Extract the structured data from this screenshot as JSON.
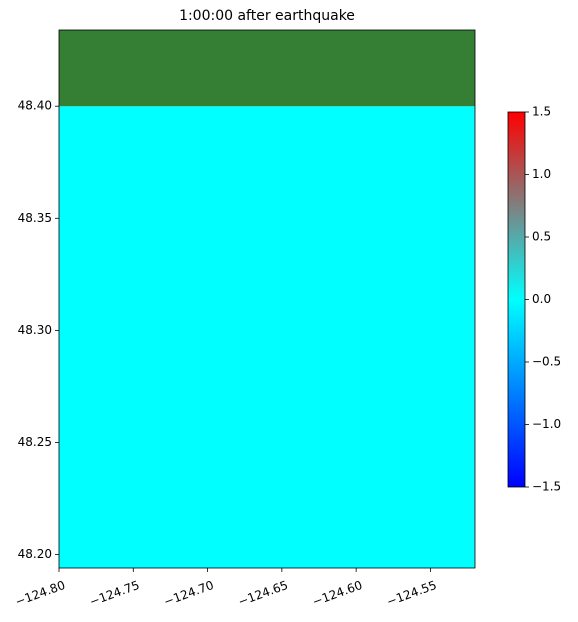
{
  "chart_data": {
    "type": "heatmap",
    "title": "1:00:00 after earthquake",
    "x": [
      -124.8,
      -124.52
    ],
    "y": [
      48.194,
      48.4,
      48.434
    ],
    "values": [
      0,
      null
    ],
    "masked_color": "#357f35",
    "xlim": [
      -124.8,
      -124.52
    ],
    "ylim": [
      48.194,
      48.434
    ],
    "xticks": [
      {
        "value": -124.8,
        "label": "−124.80"
      },
      {
        "value": -124.75,
        "label": "−124.75"
      },
      {
        "value": -124.7,
        "label": "−124.70"
      },
      {
        "value": -124.65,
        "label": "−124.65"
      },
      {
        "value": -124.6,
        "label": "−124.60"
      },
      {
        "value": -124.55,
        "label": "−124.55"
      }
    ],
    "yticks": [
      {
        "value": 48.2,
        "label": "48.20"
      },
      48.25,
      {
        "value": 48.3,
        "label": "48.30"
      },
      48.35,
      {
        "value": 48.4,
        "label": "48.40"
      }
    ],
    "colorbar": {
      "clim": [
        -1.5,
        1.5
      ],
      "colors": [
        "#0000ff",
        "#00ffff",
        "#ff0000"
      ],
      "ticks": [
        {
          "value": -1.5,
          "label": "−1.5"
        },
        {
          "value": -1.0,
          "label": "−1.0"
        },
        {
          "value": -0.5,
          "label": "−0.5"
        },
        {
          "value": 0,
          "label": "0.0"
        },
        0.5,
        {
          "value": 1.0,
          "label": "1.0"
        },
        1.5
      ]
    }
  }
}
